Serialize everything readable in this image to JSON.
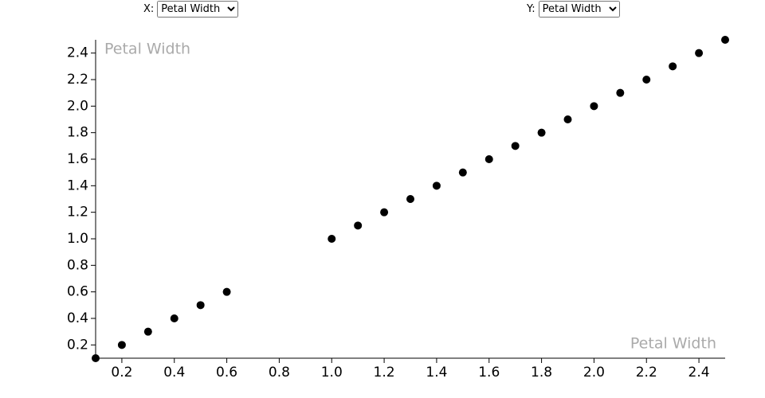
{
  "controls": [
    {
      "label": "X:",
      "value": "Petal Width"
    },
    {
      "label": "Y:",
      "value": "Petal Width"
    }
  ],
  "chart_data": {
    "type": "scatter",
    "x_label": "Petal Width",
    "y_label": "Petal Width",
    "color": "#000000",
    "x": [
      0.1,
      0.2,
      0.3,
      0.4,
      0.5,
      0.6,
      1.0,
      1.1,
      1.2,
      1.3,
      1.4,
      1.5,
      1.6,
      1.7,
      1.8,
      1.9,
      2.0,
      2.1,
      2.2,
      2.3,
      2.4,
      2.5
    ],
    "values": [
      0.1,
      0.2,
      0.3,
      0.4,
      0.5,
      0.6,
      1.0,
      1.1,
      1.2,
      1.3,
      1.4,
      1.5,
      1.6,
      1.7,
      1.8,
      1.9,
      2.0,
      2.1,
      2.2,
      2.3,
      2.4,
      2.5
    ],
    "xlim": [
      0.1,
      2.5
    ],
    "ylim": [
      0.1,
      2.5
    ],
    "xticks": [
      0.2,
      0.4,
      0.6,
      0.8,
      {
        "value": 1,
        "label": "1.0"
      },
      1.2,
      1.4,
      1.6,
      1.8,
      {
        "value": 2,
        "label": "2.0"
      },
      2.2,
      2.4
    ],
    "yticks": [
      0.2,
      0.4,
      0.6,
      0.8,
      {
        "value": 1,
        "label": "1.0"
      },
      1.2,
      1.4,
      1.6,
      1.8,
      {
        "value": 2,
        "label": "2.0"
      },
      2.2,
      2.4
    ]
  }
}
